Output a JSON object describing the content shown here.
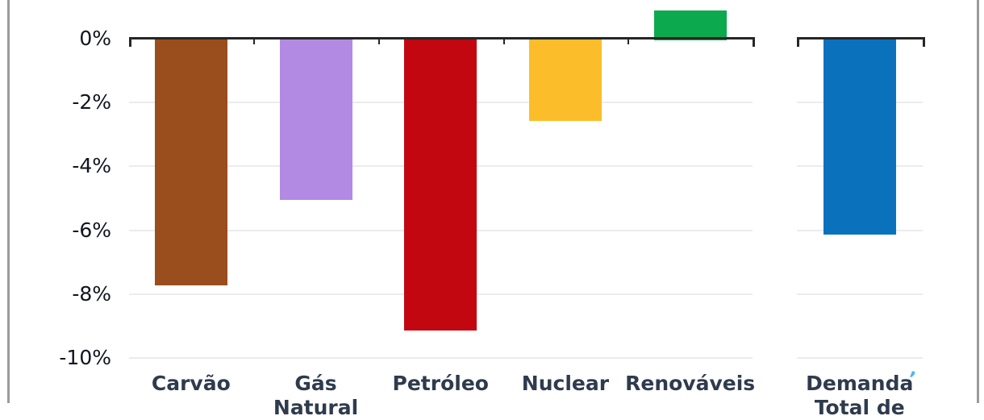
{
  "chart_data": {
    "type": "bar",
    "title": "",
    "unit": "%",
    "categories": [
      "Carvão",
      "Gás Natural",
      "Petróleo",
      "Nuclear",
      "Renováveis",
      "Demanda Total de"
    ],
    "bars": [
      {
        "label_line1": "Carvão",
        "label_line2": "",
        "value": -7.7,
        "color": "#9a4d1d",
        "panel": 1
      },
      {
        "label_line1": "Gás",
        "label_line2": "Natural",
        "value": -5.0,
        "color": "#b28ae4",
        "panel": 1
      },
      {
        "label_line1": "Petróleo",
        "label_line2": "",
        "value": -9.1,
        "color": "#c20710",
        "panel": 1
      },
      {
        "label_line1": "Nuclear",
        "label_line2": "",
        "value": -2.55,
        "color": "#fcbd2b",
        "panel": 1
      },
      {
        "label_line1": "Renováveis",
        "label_line2": "",
        "value": 0.85,
        "color": "#0ca94e",
        "panel": 1
      },
      {
        "label_line1": "Demanda",
        "label_line2": "Total de",
        "value": -6.1,
        "color": "#0a71bd",
        "panel": 2
      }
    ],
    "yticks": [
      {
        "label": "0%",
        "value": 0
      },
      {
        "label": "-2%",
        "value": -2
      },
      {
        "label": "-4%",
        "value": -4
      },
      {
        "label": "-6%",
        "value": -6
      },
      {
        "label": "-8%",
        "value": -8
      },
      {
        "label": "-10%",
        "value": -10
      }
    ],
    "ylim": [
      -10,
      1
    ],
    "grid_values": [
      -2,
      -4,
      -6,
      -8,
      -10
    ],
    "grid": "horizontal",
    "legend": "none",
    "axis_color": "#262626",
    "grid_color": "#ececec",
    "tick_label_color": "#12141f",
    "category_label_color": "#2f3b4d",
    "layout_note": "Demanda Total drawn on a separate axis segment to the right of the five fuel bars"
  },
  "frame": {
    "border_color": "#9b9b9b"
  },
  "footnote_mark": {
    "text": "’",
    "color": "#55b4ea"
  }
}
